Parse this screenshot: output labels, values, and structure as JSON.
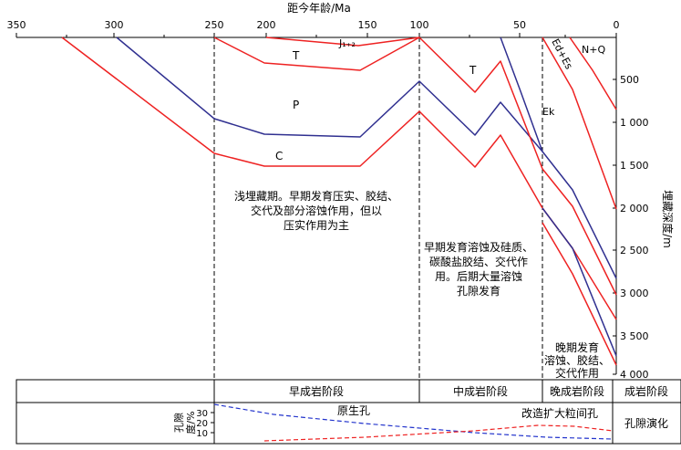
{
  "axes": {
    "top": {
      "title": "距今年龄/Ma",
      "ticks": [
        "350",
        "300",
        "250",
        "200",
        "150",
        "100",
        "50",
        "0"
      ]
    },
    "right": {
      "title": "埋藏深度/m",
      "ticks": [
        "500",
        "1 000",
        "1 500",
        "2 000",
        "2 500",
        "3 000",
        "3 500",
        "4 000"
      ]
    }
  },
  "strata_labels": [
    "J₁₊₂",
    "T",
    "P",
    "C",
    "T",
    "Ek",
    "Ed+Es",
    "N+Q"
  ],
  "annotations": [
    [
      "浅埋藏期。早期发育压实、胶结、",
      "交代及部分溶蚀作用，但以",
      "压实作用为主"
    ],
    [
      "早期发育溶蚀及硅质、",
      "碳酸盐胶结、交代作",
      "用。后期大量溶蚀",
      "孔隙发育"
    ],
    [
      "晚期发育",
      "溶蚀、胶结、",
      "交代作用"
    ]
  ],
  "stages": [
    "早成岩阶段",
    "中成岩阶段",
    "晚成岩阶段",
    "成岩阶段"
  ],
  "porosity": {
    "ylabel": [
      "孔隙",
      "度/%"
    ],
    "ticks": [
      "30",
      "20",
      "10"
    ],
    "primary_label": "原生孔",
    "secondary_label": "改造扩大粒间孔",
    "row_label": "孔隙演化"
  },
  "colors": {
    "red_curve": "#ee2222",
    "blue_curve": "#303090",
    "primary_dashed": "#2233cc",
    "secondary_dashed": "#ee2222",
    "frame": "#000000"
  }
}
